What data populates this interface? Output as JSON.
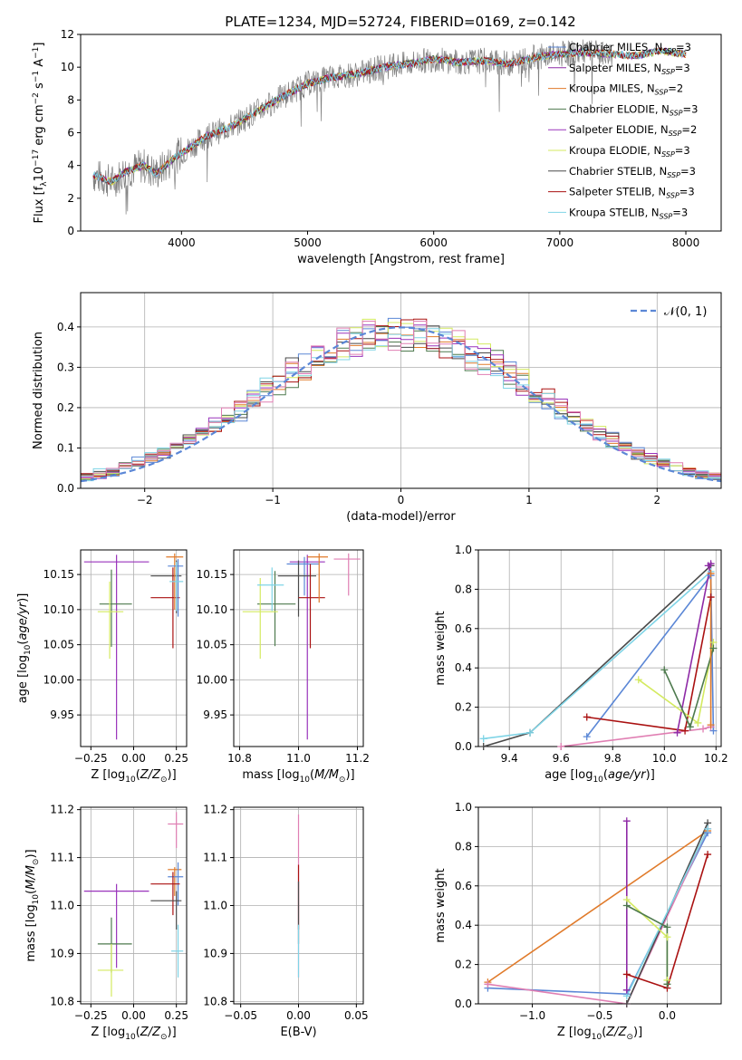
{
  "figure": {
    "title": "PLATE=1234, MJD=52724, FIBERID=0169, z=0.142"
  },
  "colors": {
    "Chabrier MILES": "#5b87d6",
    "Salpeter MILES": "#8e2aa6",
    "Kroupa MILES": "#e07a2a",
    "Chabrier ELODIE": "#4e7a4e",
    "Salpeter ELODIE": "#9933bb",
    "Kroupa ELODIE": "#d4ea60",
    "Chabrier STELIB": "#4a4a4a",
    "Salpeter STELIB": "#aa1111",
    "Kroupa STELIB": "#7fd4e6",
    "pink": "#e07fb3",
    "data": "#808080"
  },
  "chart_data": [
    {
      "id": "spectrum",
      "type": "line",
      "xlabel": "wavelength [Angstrom, rest frame]",
      "ylabel": "Flux [f_λ10^-17 erg cm^-2 s^-1 A^-1]",
      "xlim": [
        3200,
        8280
      ],
      "ylim": [
        0,
        12
      ],
      "xticks": [
        4000,
        5000,
        6000,
        7000,
        8000
      ],
      "yticks": [
        0,
        2,
        4,
        6,
        8,
        10,
        12
      ],
      "grid": false,
      "legend_position": "top-right",
      "legend": [
        "Chabrier MILES, N_SSP=3",
        "Salpeter MILES, N_SSP=3",
        "Kroupa MILES, N_SSP=2",
        "Chabrier ELODIE, N_SSP=3",
        "Salpeter ELODIE, N_SSP=2",
        "Kroupa ELODIE, N_SSP=3",
        "Chabrier STELIB, N_SSP=3",
        "Salpeter STELIB, N_SSP=3",
        "Kroupa STELIB, N_SSP=3"
      ],
      "series_colors": [
        "Chabrier MILES",
        "Salpeter MILES",
        "Kroupa MILES",
        "Chabrier ELODIE",
        "Salpeter ELODIE",
        "Kroupa ELODIE",
        "Chabrier STELIB",
        "Salpeter STELIB",
        "Kroupa STELIB"
      ],
      "continuum": {
        "x": [
          3300,
          3450,
          3550,
          3700,
          3800,
          3950,
          4050,
          4200,
          4400,
          4600,
          4800,
          5000,
          5200,
          5400,
          5600,
          5800,
          6000,
          6200,
          6400,
          6600,
          6800,
          7000,
          7200,
          7400,
          7600,
          7800,
          8000
        ],
        "y": [
          3.4,
          3.0,
          3.6,
          4.0,
          3.5,
          4.5,
          5.0,
          5.8,
          6.4,
          7.3,
          8.2,
          9.0,
          9.4,
          9.6,
          10.0,
          10.2,
          10.5,
          10.3,
          10.4,
          10.2,
          10.6,
          10.8,
          10.9,
          10.8,
          10.7,
          11.0,
          10.8
        ]
      },
      "model_start": 3300,
      "model_end": 8000,
      "data_end": 7420
    },
    {
      "id": "residuals",
      "type": "bar",
      "xlabel": "(data-model)/error",
      "ylabel": "Normed distribution",
      "xlim": [
        -2.5,
        2.5
      ],
      "ylim": [
        0,
        0.485
      ],
      "xticks": [
        -2,
        -1,
        0,
        1,
        2
      ],
      "xtick_labels": [
        "−2",
        "−1",
        "0",
        "1",
        "2"
      ],
      "yticks": [
        0.0,
        0.1,
        0.2,
        0.3,
        0.4
      ],
      "ytick_labels": [
        "0.0",
        "0.1",
        "0.2",
        "0.3",
        "0.4"
      ],
      "grid": true,
      "legend_position": "top-right",
      "legend": [
        "𝒩(0, 1)"
      ],
      "bin_width": 0.1,
      "reference_curve": "gaussian",
      "reference_color": "#5b87d6"
    },
    {
      "id": "age_vs_Z",
      "type": "scatter",
      "xlabel": "Z [log10(Z/Z⊙)]",
      "ylabel": "age  [log10(age/yr)]",
      "xlim": [
        -0.31,
        0.31
      ],
      "ylim": [
        9.905,
        10.185
      ],
      "xticks": [
        -0.25,
        0.0,
        0.25
      ],
      "xtick_labels": [
        "−0.25",
        "0.00",
        "0.25"
      ],
      "yticks": [
        9.95,
        10.0,
        10.05,
        10.1,
        10.15
      ],
      "ytick_labels": [
        "9.95",
        "10.00",
        "10.05",
        "10.10",
        "10.15"
      ],
      "grid": true,
      "points": [
        {
          "m": "Salpeter ELODIE",
          "x": -0.1,
          "y": 10.168,
          "xlo": -0.29,
          "xhi": 0.09,
          "ylo": 9.915,
          "yhi": 10.178
        },
        {
          "m": "Chabrier ELODIE",
          "x": -0.13,
          "y": 10.108,
          "xlo": -0.2,
          "xhi": -0.01,
          "ylo": 10.047,
          "yhi": 10.157
        },
        {
          "m": "Kroupa ELODIE",
          "x": -0.14,
          "y": 10.097,
          "xlo": -0.21,
          "xhi": -0.06,
          "ylo": 10.03,
          "yhi": 10.14
        },
        {
          "m": "Chabrier STELIB",
          "x": 0.25,
          "y": 10.148,
          "xlo": 0.1,
          "xhi": 0.28,
          "ylo": 10.095,
          "yhi": 10.17
        },
        {
          "m": "Salpeter STELIB",
          "x": 0.23,
          "y": 10.117,
          "xlo": 0.1,
          "xhi": 0.27,
          "ylo": 10.045,
          "yhi": 10.16
        },
        {
          "m": "Kroupa MILES",
          "x": 0.24,
          "y": 10.175,
          "xlo": 0.19,
          "xhi": 0.29,
          "ylo": 10.1,
          "yhi": 10.18
        },
        {
          "m": "Chabrier MILES",
          "x": 0.26,
          "y": 10.162,
          "xlo": 0.2,
          "xhi": 0.29,
          "ylo": 10.09,
          "yhi": 10.172
        },
        {
          "m": "Kroupa STELIB",
          "x": 0.25,
          "y": 10.14,
          "xlo": 0.21,
          "xhi": 0.29,
          "ylo": 10.098,
          "yhi": 10.168
        }
      ]
    },
    {
      "id": "age_vs_mass",
      "type": "scatter",
      "xlabel": "mass [log10(M/M⊙)]",
      "ylabel": "",
      "xlim": [
        10.78,
        11.22
      ],
      "ylim": [
        9.905,
        10.185
      ],
      "xticks": [
        10.8,
        11.0,
        11.2
      ],
      "xtick_labels": [
        "10.8",
        "11.0",
        "11.2"
      ],
      "yticks": [
        9.95,
        10.0,
        10.05,
        10.1,
        10.15
      ],
      "ytick_labels": [
        "9.95",
        "10.00",
        "10.05",
        "10.10",
        "10.15"
      ],
      "grid": true,
      "points": [
        {
          "m": "Salpeter ELODIE",
          "x": 11.03,
          "y": 10.168,
          "xlo": 10.97,
          "xhi": 11.09,
          "ylo": 9.915,
          "yhi": 10.178
        },
        {
          "m": "Chabrier MILES",
          "x": 11.02,
          "y": 10.165,
          "xlo": 10.96,
          "xhi": 11.07,
          "ylo": 10.12,
          "yhi": 10.175
        },
        {
          "m": "Chabrier ELODIE",
          "x": 10.92,
          "y": 10.108,
          "xlo": 10.86,
          "xhi": 10.99,
          "ylo": 10.048,
          "yhi": 10.155
        },
        {
          "m": "Kroupa ELODIE",
          "x": 10.87,
          "y": 10.097,
          "xlo": 10.81,
          "xhi": 10.93,
          "ylo": 10.03,
          "yhi": 10.145
        },
        {
          "m": "Kroupa STELIB",
          "x": 10.91,
          "y": 10.135,
          "xlo": 10.86,
          "xhi": 10.95,
          "ylo": 10.098,
          "yhi": 10.16
        },
        {
          "m": "Chabrier STELIB",
          "x": 11.0,
          "y": 10.148,
          "xlo": 10.93,
          "xhi": 11.06,
          "ylo": 10.09,
          "yhi": 10.17
        },
        {
          "m": "Salpeter STELIB",
          "x": 11.04,
          "y": 10.117,
          "xlo": 11.0,
          "xhi": 11.09,
          "ylo": 10.045,
          "yhi": 10.165
        },
        {
          "m": "Kroupa MILES",
          "x": 11.07,
          "y": 10.175,
          "xlo": 11.03,
          "xhi": 11.1,
          "ylo": 10.11,
          "yhi": 10.18
        },
        {
          "m": "pink",
          "x": 11.17,
          "y": 10.172,
          "xlo": 11.12,
          "xhi": 11.21,
          "ylo": 10.12,
          "yhi": 10.18
        }
      ]
    },
    {
      "id": "weight_vs_age",
      "type": "line",
      "xlabel": "age  [log10(age/yr)]",
      "ylabel": "mass weight",
      "xlim": [
        9.28,
        10.22
      ],
      "ylim": [
        0,
        1
      ],
      "xticks": [
        9.4,
        9.6,
        9.8,
        10.0,
        10.2
      ],
      "xtick_labels": [
        "9.4",
        "9.6",
        "9.8",
        "10.0",
        "10.2"
      ],
      "yticks": [
        0,
        0.2,
        0.4,
        0.6,
        0.8,
        1.0
      ],
      "ytick_labels": [
        "0.0",
        "0.2",
        "0.4",
        "0.6",
        "0.8",
        "1.0"
      ],
      "grid": true,
      "series": [
        {
          "m": "Chabrier STELIB",
          "x": [
            9.3,
            9.48,
            10.18
          ],
          "y": [
            0.0,
            0.07,
            0.92
          ]
        },
        {
          "m": "Kroupa STELIB",
          "x": [
            9.3,
            9.48,
            10.18
          ],
          "y": [
            0.04,
            0.07,
            0.89
          ]
        },
        {
          "m": "Chabrier MILES",
          "x": [
            9.7,
            10.18,
            10.19
          ],
          "y": [
            0.05,
            0.87,
            0.08
          ]
        },
        {
          "m": "Salpeter STELIB",
          "x": [
            9.7,
            10.08,
            10.18
          ],
          "y": [
            0.15,
            0.08,
            0.76
          ]
        },
        {
          "m": "pink",
          "x": [
            9.6,
            10.15,
            10.18
          ],
          "y": [
            0.0,
            0.09,
            0.1
          ]
        },
        {
          "m": "Salpeter MILES",
          "x": [
            10.05,
            10.18,
            10.17
          ],
          "y": [
            0.07,
            0.93,
            0.92
          ]
        },
        {
          "m": "Kroupa ELODIE",
          "x": [
            9.9,
            10.13,
            10.19
          ],
          "y": [
            0.34,
            0.12,
            0.53
          ]
        },
        {
          "m": "Chabrier ELODIE",
          "x": [
            10.0,
            10.1,
            10.19
          ],
          "y": [
            0.39,
            0.1,
            0.5
          ]
        },
        {
          "m": "Kroupa MILES",
          "x": [
            10.18,
            10.18
          ],
          "y": [
            0.88,
            0.11
          ]
        }
      ]
    },
    {
      "id": "mass_vs_Z",
      "type": "scatter",
      "xlabel": "Z [log10(Z/Z⊙)]",
      "ylabel": "mass [log10(M/M⊙)]",
      "xlim": [
        -0.31,
        0.31
      ],
      "ylim": [
        10.795,
        11.205
      ],
      "xticks": [
        -0.25,
        0.0,
        0.25
      ],
      "xtick_labels": [
        "−0.25",
        "0.00",
        "0.25"
      ],
      "yticks": [
        10.8,
        10.9,
        11.0,
        11.1,
        11.2
      ],
      "ytick_labels": [
        "10.8",
        "10.9",
        "11.0",
        "11.1",
        "11.2"
      ],
      "grid": true,
      "points": [
        {
          "m": "Salpeter ELODIE",
          "x": -0.1,
          "y": 11.03,
          "xlo": -0.29,
          "xhi": 0.09,
          "ylo": 10.87,
          "yhi": 11.045
        },
        {
          "m": "Chabrier ELODIE",
          "x": -0.13,
          "y": 10.92,
          "xlo": -0.21,
          "xhi": -0.01,
          "ylo": 10.86,
          "yhi": 10.975
        },
        {
          "m": "Kroupa ELODIE",
          "x": -0.13,
          "y": 10.865,
          "xlo": -0.21,
          "xhi": -0.06,
          "ylo": 10.81,
          "yhi": 10.92
        },
        {
          "m": "pink",
          "x": 0.25,
          "y": 11.17,
          "xlo": 0.2,
          "xhi": 0.29,
          "ylo": 11.12,
          "yhi": 11.195
        },
        {
          "m": "Kroupa MILES",
          "x": 0.24,
          "y": 11.075,
          "xlo": 0.2,
          "xhi": 0.28,
          "ylo": 11.02,
          "yhi": 11.08
        },
        {
          "m": "Chabrier MILES",
          "x": 0.26,
          "y": 11.06,
          "xlo": 0.2,
          "xhi": 0.29,
          "ylo": 11.0,
          "yhi": 11.09
        },
        {
          "m": "Salpeter STELIB",
          "x": 0.23,
          "y": 11.045,
          "xlo": 0.1,
          "xhi": 0.27,
          "ylo": 10.98,
          "yhi": 11.07
        },
        {
          "m": "Chabrier STELIB",
          "x": 0.25,
          "y": 11.01,
          "xlo": 0.1,
          "xhi": 0.28,
          "ylo": 10.95,
          "yhi": 11.03
        },
        {
          "m": "Kroupa STELIB",
          "x": 0.26,
          "y": 10.905,
          "xlo": 0.22,
          "xhi": 0.29,
          "ylo": 10.85,
          "yhi": 10.96
        }
      ]
    },
    {
      "id": "mass_vs_EBV",
      "type": "scatter",
      "xlabel": "E(B-V)",
      "ylabel": "",
      "xlim": [
        -0.056,
        0.056
      ],
      "ylim": [
        10.795,
        11.205
      ],
      "xticks": [
        -0.05,
        0.0,
        0.05
      ],
      "xtick_labels": [
        "−0.05",
        "0.00",
        "0.05"
      ],
      "yticks": [
        10.8,
        10.9,
        11.0,
        11.1,
        11.2
      ],
      "ytick_labels": [
        "10.8",
        "10.9",
        "11.0",
        "11.1",
        "11.2"
      ],
      "grid": true,
      "points": [
        {
          "m": "pink",
          "x": 0.0,
          "y": 11.0,
          "xlo": 0.0,
          "xhi": 0.0,
          "ylo": 10.85,
          "yhi": 11.19
        },
        {
          "m": "Salpeter STELIB",
          "x": 0.0,
          "y": 11.0,
          "xlo": 0.0,
          "xhi": 0.0,
          "ylo": 10.95,
          "yhi": 11.085
        },
        {
          "m": "Chabrier STELIB",
          "x": 0.0,
          "y": 11.0,
          "xlo": 0.0,
          "xhi": 0.0,
          "ylo": 10.92,
          "yhi": 11.05
        },
        {
          "m": "Kroupa STELIB",
          "x": 0.0,
          "y": 10.9,
          "xlo": 0.0,
          "xhi": 0.0,
          "ylo": 10.85,
          "yhi": 10.96
        }
      ]
    },
    {
      "id": "weight_vs_Z",
      "type": "line",
      "xlabel": "Z [log10(Z/Z⊙)]",
      "ylabel": "mass weight",
      "xlim": [
        -1.4,
        0.4
      ],
      "ylim": [
        0,
        1
      ],
      "xticks": [
        -1.0,
        -0.5,
        0.0
      ],
      "xtick_labels": [
        "−1.0",
        "−0.5",
        "0.0"
      ],
      "yticks": [
        0,
        0.2,
        0.4,
        0.6,
        0.8,
        1.0
      ],
      "ytick_labels": [
        "0.0",
        "0.2",
        "0.4",
        "0.6",
        "0.8",
        "1.0"
      ],
      "grid": true,
      "series": [
        {
          "m": "Kroupa MILES",
          "x": [
            -1.33,
            0.3
          ],
          "y": [
            0.11,
            0.88
          ]
        },
        {
          "m": "Chabrier MILES",
          "x": [
            -1.33,
            -0.3,
            0.3
          ],
          "y": [
            0.08,
            0.05,
            0.87
          ]
        },
        {
          "m": "pink",
          "x": [
            -1.33,
            -0.3,
            0.3
          ],
          "y": [
            0.1,
            0.0,
            0.89
          ]
        },
        {
          "m": "Chabrier STELIB",
          "x": [
            -0.3,
            0.3
          ],
          "y": [
            0.0,
            0.92
          ]
        },
        {
          "m": "Kroupa STELIB",
          "x": [
            -0.3,
            0.3
          ],
          "y": [
            0.04,
            0.89
          ]
        },
        {
          "m": "Salpeter MILES",
          "x": [
            -0.3,
            -0.3
          ],
          "y": [
            0.93,
            0.07
          ]
        },
        {
          "m": "Salpeter STELIB",
          "x": [
            -0.3,
            0.0,
            0.3
          ],
          "y": [
            0.15,
            0.08,
            0.76
          ]
        },
        {
          "m": "Kroupa ELODIE",
          "x": [
            -0.3,
            0.0,
            0.0
          ],
          "y": [
            0.53,
            0.34,
            0.12
          ]
        },
        {
          "m": "Chabrier ELODIE",
          "x": [
            -0.3,
            0.0,
            0.0
          ],
          "y": [
            0.5,
            0.39,
            0.1
          ]
        }
      ]
    }
  ]
}
